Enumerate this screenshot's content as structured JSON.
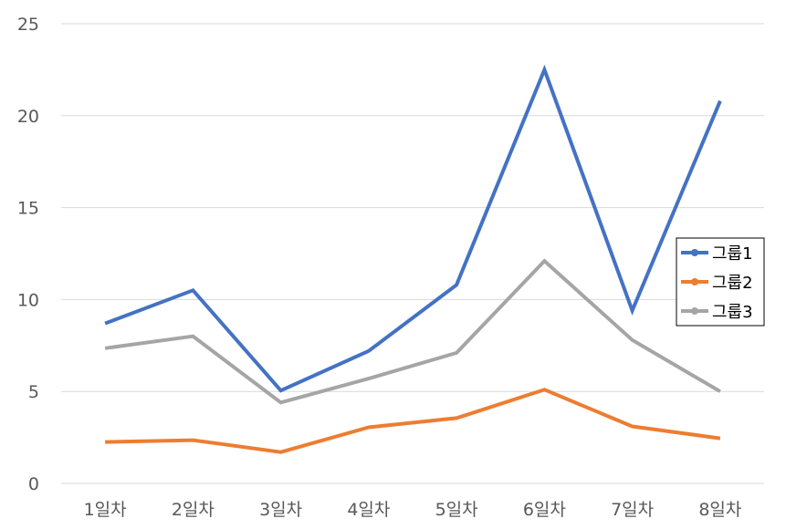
{
  "chart_data": {
    "type": "line",
    "title": "",
    "xlabel": "",
    "ylabel": "",
    "categories": [
      "1일차",
      "2일차",
      "3일차",
      "4일차",
      "5일차",
      "6일차",
      "7일차",
      "8일차"
    ],
    "ylim": [
      0,
      25
    ],
    "yticks": [
      0,
      5,
      10,
      15,
      20,
      25
    ],
    "grid": true,
    "legend_position": "right",
    "series": [
      {
        "name": "그룹1",
        "color": "#4472C4",
        "values": [
          8.7,
          10.5,
          5.05,
          7.2,
          10.8,
          22.5,
          9.4,
          20.8
        ]
      },
      {
        "name": "그룹2",
        "color": "#ED7D31",
        "values": [
          2.25,
          2.35,
          1.7,
          3.05,
          3.55,
          5.1,
          3.1,
          2.45
        ]
      },
      {
        "name": "그룹3",
        "color": "#A5A5A5",
        "values": [
          7.35,
          8.0,
          4.4,
          5.7,
          7.1,
          12.1,
          7.8,
          5.0
        ]
      }
    ]
  }
}
